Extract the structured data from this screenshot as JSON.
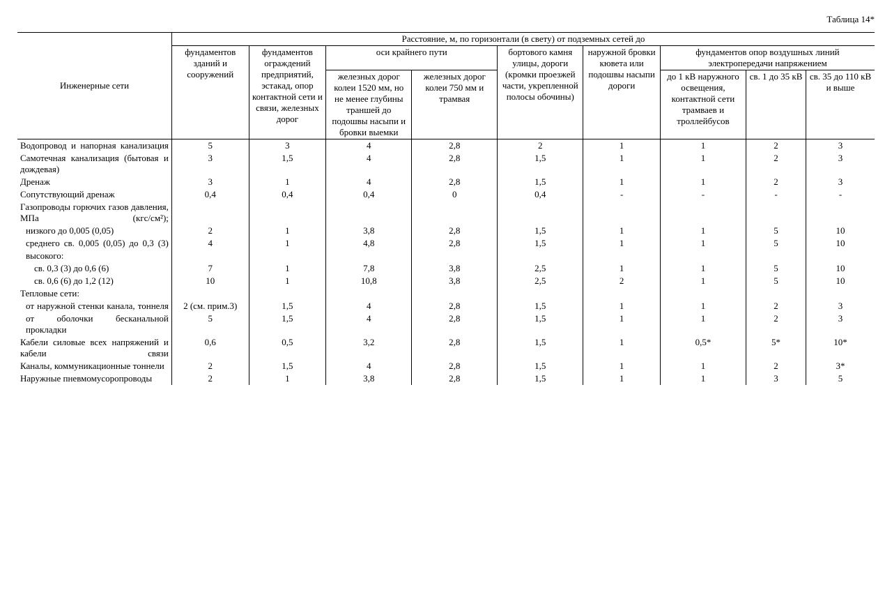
{
  "title": "Таблица 14*",
  "header": {
    "spanner": "Расстояние, м, по горизонтали (в свету) от подземных сетей до",
    "row_label": "Инженерные сети",
    "col1": "фундаментов зданий и сооружений",
    "col2": "фундаментов ограждений предприятий, эстакад, опор контактной сети и связи, железных дорог",
    "axis_group": "оси крайнего пути",
    "col3": "железных дорог колеи 1520 мм, но не менее глубины траншей до подошвы насыпи и бровки выемки",
    "col4": "железных дорог колеи 750 мм и трамвая",
    "col5": "бортового камня улицы, дороги (кромки проезжей части, укрепленной полосы обочины)",
    "col6": "наружной бровки кювета или подошвы насыпи дороги",
    "found_group": "фундаментов опор воздушных линий электропередачи напряжением",
    "col7": "до 1 кВ наружного освещения, контактной сети трамваев и троллейбусов",
    "col8": "св. 1 до 35 кВ",
    "col9": "св. 35 до 110 кВ и выше"
  },
  "rows": [
    {
      "label": "Водопровод и напорная канализация",
      "indent": 0,
      "just": true,
      "v": [
        "5",
        "3",
        "4",
        "2,8",
        "2",
        "1",
        "1",
        "2",
        "3"
      ]
    },
    {
      "label": "Самотечная канализация (бытовая и дождевая)",
      "indent": 0,
      "just": true,
      "v": [
        "3",
        "1,5",
        "4",
        "2,8",
        "1,5",
        "1",
        "1",
        "2",
        "3"
      ]
    },
    {
      "label": "Дренаж",
      "indent": 0,
      "v": [
        "3",
        "1",
        "4",
        "2,8",
        "1,5",
        "1",
        "1",
        "2",
        "3"
      ]
    },
    {
      "label": "Сопутствующий дренаж",
      "indent": 0,
      "v": [
        "0,4",
        "0,4",
        "0,4",
        "0",
        "0,4",
        "-",
        "-",
        "-",
        "-"
      ]
    },
    {
      "label": "Газопроводы горючих газов давления, МПа (кгс/см²);",
      "indent": 0,
      "just": true,
      "v": [
        "",
        "",
        "",
        "",
        "",
        "",
        "",
        "",
        ""
      ]
    },
    {
      "label": "низкого до 0,005 (0,05)",
      "indent": 1,
      "v": [
        "2",
        "1",
        "3,8",
        "2,8",
        "1,5",
        "1",
        "1",
        "5",
        "10"
      ]
    },
    {
      "label": "среднего св. 0,005 (0,05) до 0,3 (3)",
      "indent": 1,
      "just": true,
      "v": [
        "4",
        "1",
        "4,8",
        "2,8",
        "1,5",
        "1",
        "1",
        "5",
        "10"
      ]
    },
    {
      "label": "высокого:",
      "indent": 1,
      "v": [
        "",
        "",
        "",
        "",
        "",
        "",
        "",
        "",
        ""
      ]
    },
    {
      "label": "св. 0,3 (3) до 0,6  (6)",
      "indent": 2,
      "v": [
        "7",
        "1",
        "7,8",
        "3,8",
        "2,5",
        "1",
        "1",
        "5",
        "10"
      ]
    },
    {
      "label": "св. 0,6 (6) до 1,2 (12)",
      "indent": 2,
      "v": [
        "10",
        "1",
        "10,8",
        "3,8",
        "2,5",
        "2",
        "1",
        "5",
        "10"
      ]
    },
    {
      "label": "Тепловые сети:",
      "indent": 0,
      "v": [
        "",
        "",
        "",
        "",
        "",
        "",
        "",
        "",
        ""
      ]
    },
    {
      "label": "от наружной стенки канала, тоннеля",
      "indent": 1,
      "just": true,
      "v": [
        "2 (см. прим.3)",
        "1,5",
        "4",
        "2,8",
        "1,5",
        "1",
        "1",
        "2",
        "3"
      ]
    },
    {
      "label": "от оболочки бесканальной прокладки",
      "indent": 1,
      "just": true,
      "v": [
        "5",
        "1,5",
        "4",
        "2,8",
        "1,5",
        "1",
        "1",
        "2",
        "3"
      ]
    },
    {
      "label": "Кабели силовые всех напряжений и кабели связи",
      "indent": 0,
      "just": true,
      "v": [
        "0,6",
        "0,5",
        "3,2",
        "2,8",
        "1,5",
        "1",
        "0,5*",
        "5*",
        "10*"
      ]
    },
    {
      "label": "Каналы, коммуникационные тоннели",
      "indent": 0,
      "v": [
        "2",
        "1,5",
        "4",
        "2,8",
        "1,5",
        "1",
        "1",
        "2",
        "3*"
      ]
    },
    {
      "label": "Наружные пневмомусоропроводы",
      "indent": 0,
      "v": [
        "2",
        "1",
        "3,8",
        "2,8",
        "1,5",
        "1",
        "1",
        "3",
        "5"
      ]
    }
  ],
  "style": {
    "font_family": "Times New Roman",
    "font_size_pt": 10,
    "border_color": "#000000",
    "background": "#ffffff",
    "text_color": "#000000"
  }
}
